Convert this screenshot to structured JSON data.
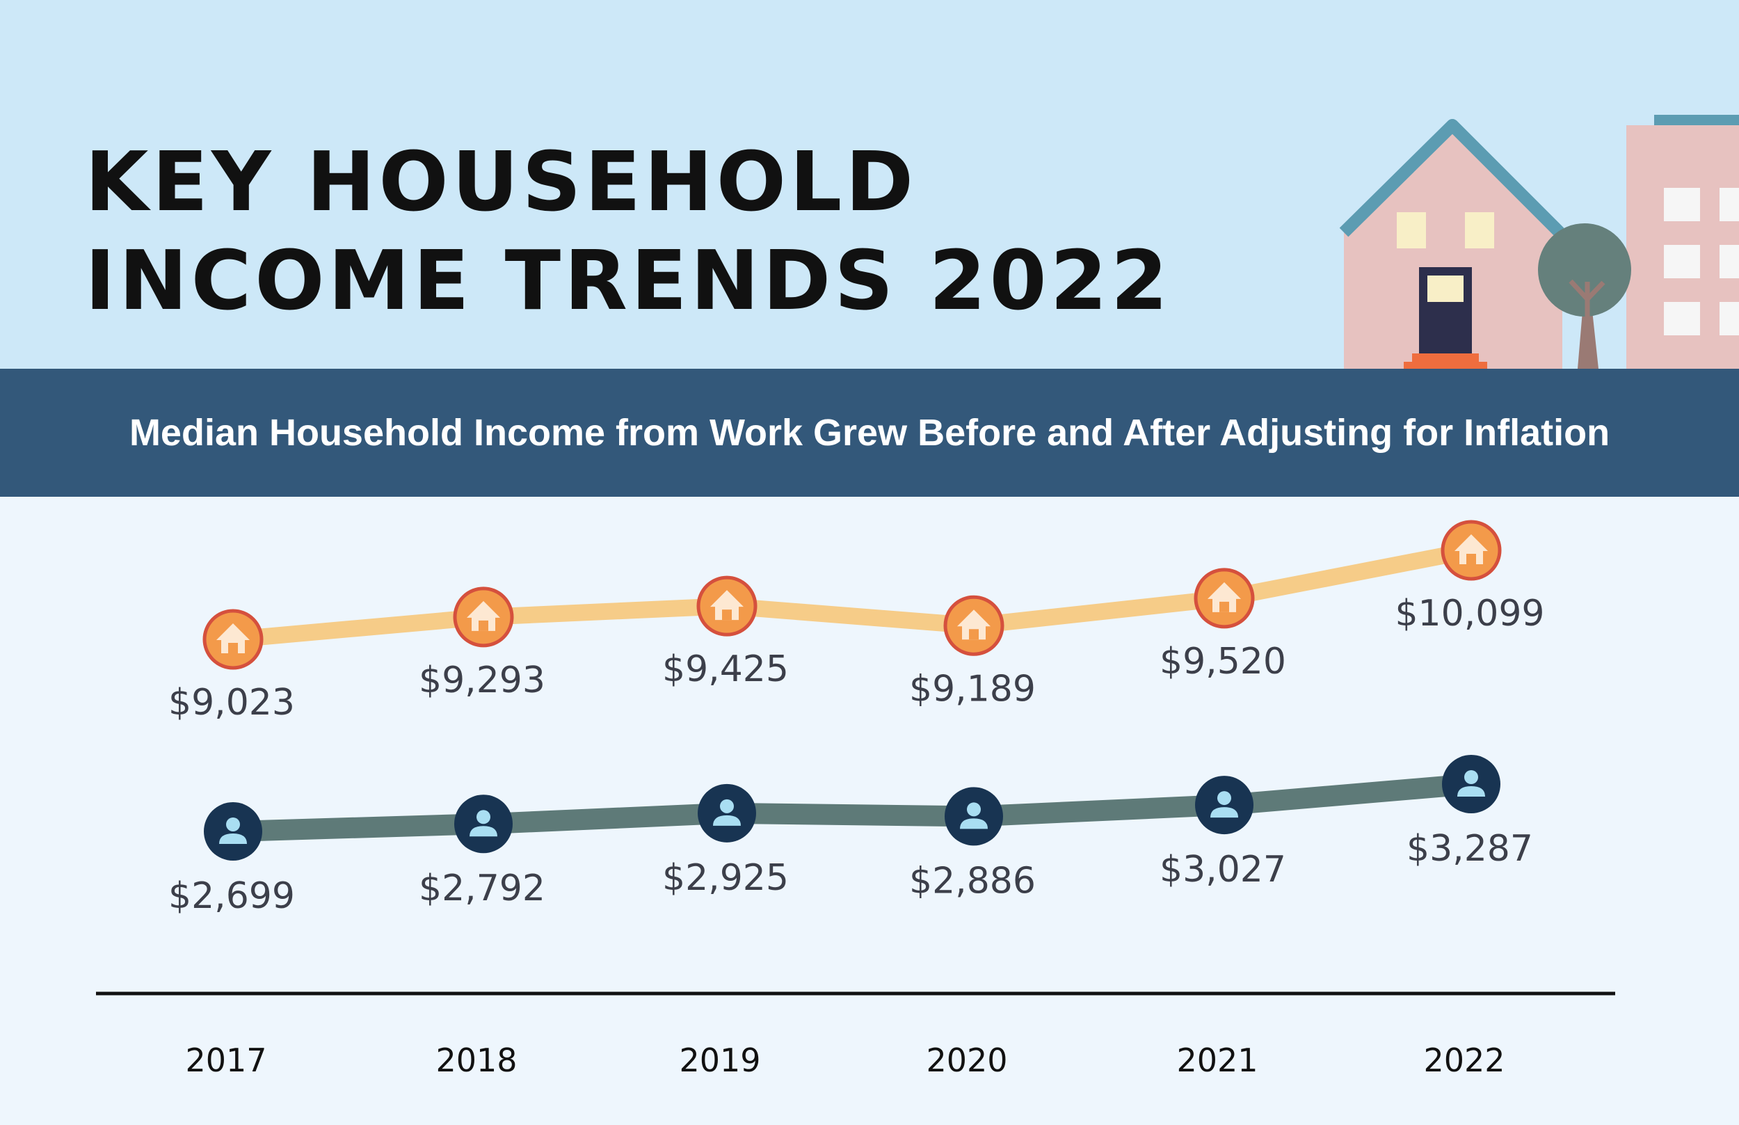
{
  "title": {
    "line1": "KEY HOUSEHOLD",
    "line2": "INCOME TRENDS 2022"
  },
  "subtitle": "Median Household Income from Work Grew Before and After Adjusting for Inflation",
  "colors": {
    "header_bg": "#cde8f8",
    "band_bg": "#33587a",
    "household_line": "#f6cc88",
    "household_marker": "#f39a4a",
    "household_marker_stroke": "#d5503d",
    "person_line": "#5e7a78",
    "person_marker": "#183452",
    "person_icon": "#a9def2"
  },
  "icons": {
    "household_marker": "house-icon",
    "person_marker": "person-icon",
    "scene": [
      "house-illustration",
      "tree-illustration",
      "apartment-building-illustration"
    ]
  },
  "chart_data": {
    "type": "line",
    "categories": [
      "2017",
      "2018",
      "2019",
      "2020",
      "2021",
      "2022"
    ],
    "series": [
      {
        "values": [
          9023,
          9293,
          9425,
          9189,
          9520,
          10099
        ],
        "labels": [
          "$9,023",
          "$9,293",
          "$9,425",
          "$9,189",
          "$9,520",
          "$10,099"
        ]
      },
      {
        "values": [
          2699,
          2792,
          2925,
          2886,
          3027,
          3287
        ],
        "labels": [
          "$2,699",
          "$2,792",
          "$2,925",
          "$2,886",
          "$3,027",
          "$3,287"
        ]
      }
    ],
    "grid": false,
    "legend": "none"
  }
}
